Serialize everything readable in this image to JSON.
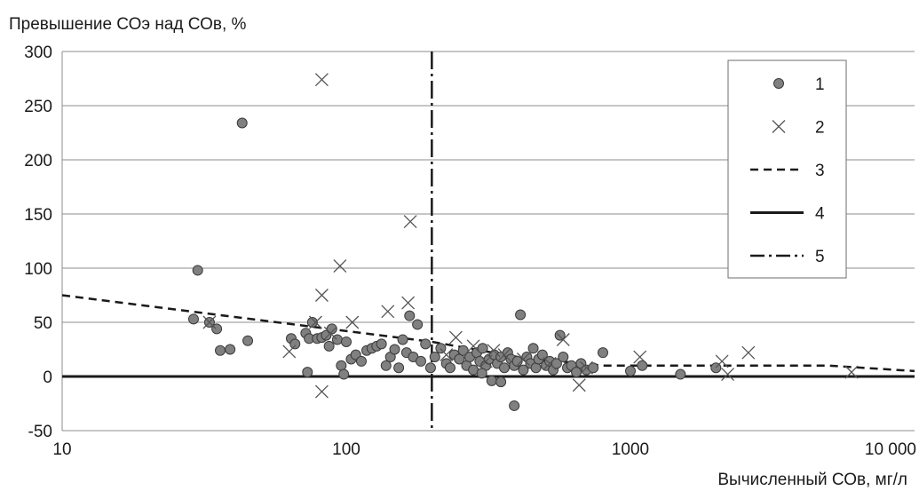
{
  "chart_data": {
    "type": "scatter",
    "title": "Превышение  СОэ  над  СОв, %",
    "xlabel": "Вычисленный СОв, мг/л",
    "ylabel": "",
    "x_scale": "log",
    "xlim": [
      10,
      10000
    ],
    "ylim": [
      -50,
      300
    ],
    "x_ticks": [
      10,
      100,
      1000,
      10000
    ],
    "x_tick_labels": [
      "10",
      "100",
      "1000",
      "10 000"
    ],
    "y_ticks": [
      -50,
      0,
      50,
      100,
      150,
      200,
      250,
      300
    ],
    "y_tick_labels": [
      "-50",
      "0",
      "50",
      "100",
      "150",
      "200",
      "250",
      "300"
    ],
    "grid": {
      "horizontal": true,
      "vertical": false
    },
    "legend_position": "top-right",
    "colors": {
      "marker_fill": "#808080",
      "marker_stroke": "#3a3a3a",
      "line": "#1a1a1a",
      "grid": "#8c8c8c"
    },
    "series": [
      {
        "name": "1",
        "kind": "points-circle",
        "points": [
          [
            43,
            234
          ],
          [
            30,
            98
          ],
          [
            29,
            53
          ],
          [
            33,
            50
          ],
          [
            35,
            44
          ],
          [
            36,
            24
          ],
          [
            39,
            25
          ],
          [
            45,
            33
          ],
          [
            64,
            35
          ],
          [
            66,
            30
          ],
          [
            72,
            40
          ],
          [
            73,
            4
          ],
          [
            74,
            35
          ],
          [
            76,
            50
          ],
          [
            79,
            35
          ],
          [
            82,
            36
          ],
          [
            85,
            38
          ],
          [
            87,
            28
          ],
          [
            89,
            44
          ],
          [
            93,
            34
          ],
          [
            96,
            10
          ],
          [
            98,
            2
          ],
          [
            100,
            32
          ],
          [
            104,
            16
          ],
          [
            108,
            20
          ],
          [
            113,
            14
          ],
          [
            118,
            24
          ],
          [
            123,
            26
          ],
          [
            128,
            28
          ],
          [
            133,
            30
          ],
          [
            138,
            10
          ],
          [
            143,
            18
          ],
          [
            148,
            25
          ],
          [
            153,
            8
          ],
          [
            158,
            34
          ],
          [
            163,
            22
          ],
          [
            167,
            56
          ],
          [
            172,
            18
          ],
          [
            178,
            48
          ],
          [
            183,
            14
          ],
          [
            190,
            30
          ],
          [
            198,
            8
          ],
          [
            205,
            18
          ],
          [
            215,
            26
          ],
          [
            225,
            12
          ],
          [
            232,
            8
          ],
          [
            240,
            20
          ],
          [
            250,
            16
          ],
          [
            258,
            24
          ],
          [
            265,
            10
          ],
          [
            272,
            18
          ],
          [
            280,
            6
          ],
          [
            288,
            22
          ],
          [
            295,
            14
          ],
          [
            302,
            26
          ],
          [
            310,
            10
          ],
          [
            318,
            16
          ],
          [
            325,
            -4
          ],
          [
            332,
            20
          ],
          [
            340,
            12
          ],
          [
            350,
            18
          ],
          [
            360,
            8
          ],
          [
            370,
            22
          ],
          [
            380,
            16
          ],
          [
            390,
            10
          ],
          [
            400,
            14
          ],
          [
            410,
            57
          ],
          [
            420,
            6
          ],
          [
            432,
            18
          ],
          [
            445,
            12
          ],
          [
            455,
            26
          ],
          [
            465,
            8
          ],
          [
            475,
            16
          ],
          [
            490,
            20
          ],
          [
            505,
            10
          ],
          [
            520,
            14
          ],
          [
            535,
            6
          ],
          [
            550,
            12
          ],
          [
            565,
            38
          ],
          [
            580,
            18
          ],
          [
            600,
            8
          ],
          [
            620,
            10
          ],
          [
            645,
            4
          ],
          [
            670,
            12
          ],
          [
            700,
            6
          ],
          [
            740,
            8
          ],
          [
            800,
            22
          ],
          [
            1000,
            5
          ],
          [
            1100,
            10
          ],
          [
            1500,
            2
          ],
          [
            2000,
            8
          ],
          [
            350,
            -5
          ],
          [
            390,
            -27
          ],
          [
            300,
            3
          ]
        ]
      },
      {
        "name": "2",
        "kind": "points-x",
        "points": [
          [
            82,
            274
          ],
          [
            168,
            143
          ],
          [
            95,
            102
          ],
          [
            82,
            75
          ],
          [
            165,
            68
          ],
          [
            140,
            60
          ],
          [
            105,
            50
          ],
          [
            78,
            50
          ],
          [
            33,
            50
          ],
          [
            88,
            40
          ],
          [
            63,
            23
          ],
          [
            243,
            36
          ],
          [
            280,
            28
          ],
          [
            330,
            24
          ],
          [
            360,
            20
          ],
          [
            420,
            16
          ],
          [
            520,
            12
          ],
          [
            580,
            34
          ],
          [
            660,
            -8
          ],
          [
            1080,
            18
          ],
          [
            2100,
            14
          ],
          [
            2600,
            22
          ],
          [
            6000,
            4
          ],
          [
            82,
            -14
          ],
          [
            225,
            20
          ],
          [
            310,
            14
          ],
          [
            700,
            8
          ],
          [
            2200,
            2
          ]
        ]
      },
      {
        "name": "3",
        "kind": "line-dashed",
        "points": [
          [
            10,
            75
          ],
          [
            200,
            32
          ],
          [
            400,
            18
          ],
          [
            800,
            10
          ],
          [
            5000,
            10
          ],
          [
            10000,
            5
          ]
        ]
      },
      {
        "name": "4",
        "kind": "line-solid",
        "points": [
          [
            10,
            0
          ],
          [
            10000,
            0
          ]
        ]
      },
      {
        "name": "5",
        "kind": "vline-dashdot",
        "x": 200
      }
    ],
    "legend": [
      {
        "label": "1",
        "kind": "points-circle"
      },
      {
        "label": "2",
        "kind": "points-x"
      },
      {
        "label": "3",
        "kind": "line-dashed"
      },
      {
        "label": "4",
        "kind": "line-solid"
      },
      {
        "label": "5",
        "kind": "vline-dashdot"
      }
    ]
  }
}
